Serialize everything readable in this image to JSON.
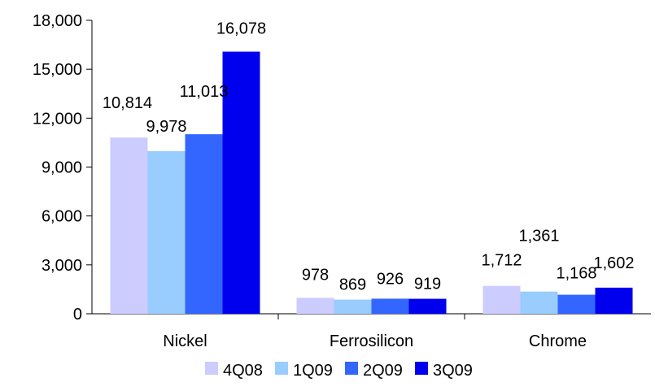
{
  "chart_data": {
    "type": "bar",
    "categories": [
      "Nickel",
      "Ferrosilicon",
      "Chrome"
    ],
    "series": [
      {
        "name": "4Q08",
        "color": "#CCCCFF",
        "values": [
          10814,
          978,
          1712
        ],
        "labels": [
          "10,814",
          "978",
          "1,712"
        ]
      },
      {
        "name": "1Q09",
        "color": "#99CCFF",
        "values": [
          9978,
          869,
          1361
        ],
        "labels": [
          "9,978",
          "869",
          "1,361"
        ]
      },
      {
        "name": "2Q09",
        "color": "#3366FF",
        "values": [
          11013,
          926,
          1168
        ],
        "labels": [
          "11,013",
          "926",
          "1,168"
        ]
      },
      {
        "name": "3Q09",
        "color": "#0000EE",
        "values": [
          16078,
          919,
          1602
        ],
        "labels": [
          "16,078",
          "919",
          "1,602"
        ]
      }
    ],
    "ylim": [
      0,
      18000
    ],
    "yticks": [
      0,
      3000,
      6000,
      9000,
      12000,
      15000,
      18000
    ],
    "ytick_labels": [
      "0",
      "3,000",
      "6,000",
      "9,000",
      "12,000",
      "15,000",
      "18,000"
    ],
    "grid": false,
    "legend": "bottom"
  }
}
